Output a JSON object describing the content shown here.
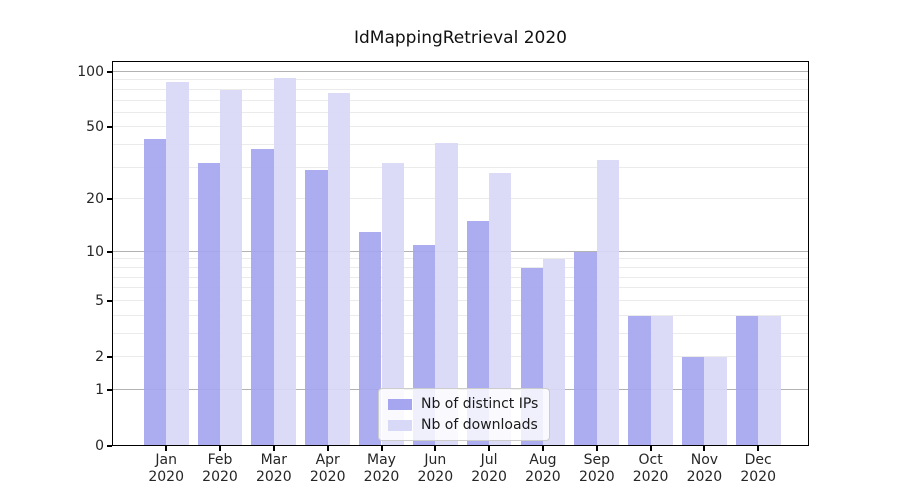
{
  "title": "IdMappingRetrieval 2020",
  "chart_data": {
    "type": "bar",
    "title": "IdMappingRetrieval 2020",
    "categories": [
      "Jan",
      "Feb",
      "Mar",
      "Apr",
      "May",
      "Jun",
      "Jul",
      "Aug",
      "Sep",
      "Oct",
      "Nov",
      "Dec"
    ],
    "xtick_year": "2020",
    "series": [
      {
        "name": "Nb of distinct IPs",
        "color": "#a5a5f0",
        "values": [
          43,
          32,
          38,
          29,
          13,
          11,
          15,
          8,
          10,
          4,
          2,
          4
        ]
      },
      {
        "name": "Nb of downloads",
        "color": "#d8d8f7",
        "values": [
          88,
          80,
          93,
          77,
          32,
          41,
          28,
          9,
          33,
          4,
          2,
          4
        ]
      }
    ],
    "yscale": "log1p",
    "ylim": [
      0,
      100
    ],
    "yticks": [
      0,
      1,
      2,
      5,
      10,
      20,
      50,
      100
    ],
    "major_gridlines": [
      1,
      10,
      100
    ],
    "minor_gridlines": [
      2,
      3,
      4,
      5,
      6,
      7,
      8,
      9,
      20,
      30,
      40,
      50,
      60,
      70,
      80,
      90
    ],
    "grid": true,
    "legend_position": "lower center"
  },
  "colors": {
    "bar_distinct_ips": "#a5a5f0",
    "bar_downloads": "#d8d8f7",
    "grid_major": "#b2b2b2",
    "grid_minor": "#ebebeb",
    "spine": "#000000",
    "legend_border": "#cccccc"
  }
}
